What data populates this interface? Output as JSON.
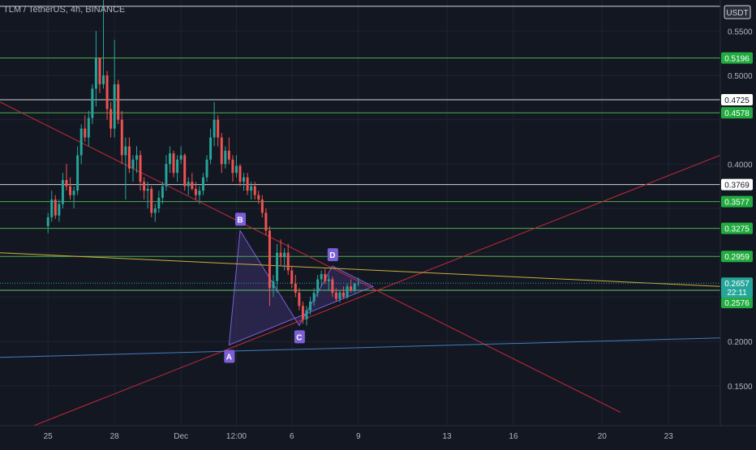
{
  "symbol_title": "TLM / TetherUS, 4h, BINANCE",
  "currency": "USDT",
  "colors": {
    "background": "#131722",
    "grid": "#1f2430",
    "up": "#26a69a",
    "down": "#ef5350",
    "green_level": "#4caf50",
    "white_level": "#d1d4dc",
    "trend_red": "#c62a3a",
    "trend_yellow": "#c9b037",
    "trend_blue": "#3f7fbf",
    "pattern_fill": "#3a2f6b",
    "pattern_stroke": "#7b5fd6",
    "label_green": "#22ab3f",
    "label_current": "#26a69a"
  },
  "chart_data": {
    "type": "candlestick",
    "title": "TLM / TetherUS, 4h, BINANCE",
    "y_axis": {
      "unit": "USDT",
      "range": [
        0.105,
        0.585
      ],
      "ticks": [
        0.15,
        0.2,
        0.25,
        0.3,
        0.35,
        0.4,
        0.45,
        0.5,
        0.55
      ],
      "tick_labels": [
        "0.1500",
        "0.2000",
        "",
        "",
        "",
        "0.4000",
        "",
        "0.5000",
        "0.5500"
      ],
      "grid": true
    },
    "x_axis": {
      "ticks": [
        {
          "label": "25",
          "pos": 0
        },
        {
          "label": "28",
          "pos": 18
        },
        {
          "label": "Dec",
          "pos": 36
        },
        {
          "label": "12:00",
          "pos": 51
        },
        {
          "label": "6",
          "pos": 66
        },
        {
          "label": "9",
          "pos": 84
        },
        {
          "label": "13",
          "pos": 108
        },
        {
          "label": "16",
          "pos": 126
        },
        {
          "label": "20",
          "pos": 150
        },
        {
          "label": "23",
          "pos": 168
        }
      ],
      "range": [
        -13,
        182
      ],
      "grid": true
    },
    "candles_ohlc": [
      [
        0.33,
        0.345,
        0.322,
        0.34
      ],
      [
        0.34,
        0.37,
        0.335,
        0.36
      ],
      [
        0.36,
        0.365,
        0.338,
        0.342
      ],
      [
        0.342,
        0.36,
        0.335,
        0.355
      ],
      [
        0.355,
        0.39,
        0.35,
        0.382
      ],
      [
        0.382,
        0.4,
        0.37,
        0.375
      ],
      [
        0.375,
        0.385,
        0.36,
        0.365
      ],
      [
        0.365,
        0.375,
        0.35,
        0.37
      ],
      [
        0.37,
        0.42,
        0.365,
        0.41
      ],
      [
        0.41,
        0.445,
        0.4,
        0.44
      ],
      [
        0.44,
        0.455,
        0.425,
        0.43
      ],
      [
        0.43,
        0.46,
        0.42,
        0.452
      ],
      [
        0.452,
        0.49,
        0.445,
        0.485
      ],
      [
        0.485,
        0.55,
        0.465,
        0.52
      ],
      [
        0.52,
        0.52,
        0.48,
        0.49
      ],
      [
        0.49,
        0.585,
        0.485,
        0.5
      ],
      [
        0.5,
        0.505,
        0.45,
        0.462
      ],
      [
        0.462,
        0.47,
        0.43,
        0.44
      ],
      [
        0.44,
        0.54,
        0.43,
        0.49
      ],
      [
        0.49,
        0.495,
        0.445,
        0.45
      ],
      [
        0.45,
        0.46,
        0.4,
        0.41
      ],
      [
        0.41,
        0.43,
        0.36,
        0.42
      ],
      [
        0.42,
        0.43,
        0.39,
        0.395
      ],
      [
        0.395,
        0.41,
        0.38,
        0.405
      ],
      [
        0.405,
        0.42,
        0.39,
        0.41
      ],
      [
        0.41,
        0.415,
        0.37,
        0.38
      ],
      [
        0.38,
        0.385,
        0.36,
        0.37
      ],
      [
        0.37,
        0.38,
        0.35,
        0.372
      ],
      [
        0.372,
        0.375,
        0.34,
        0.345
      ],
      [
        0.345,
        0.355,
        0.335,
        0.35
      ],
      [
        0.35,
        0.37,
        0.345,
        0.362
      ],
      [
        0.362,
        0.38,
        0.355,
        0.375
      ],
      [
        0.375,
        0.41,
        0.37,
        0.4
      ],
      [
        0.4,
        0.42,
        0.39,
        0.412
      ],
      [
        0.412,
        0.415,
        0.385,
        0.39
      ],
      [
        0.39,
        0.41,
        0.38,
        0.405
      ],
      [
        0.405,
        0.42,
        0.4,
        0.41
      ],
      [
        0.41,
        0.412,
        0.37,
        0.375
      ],
      [
        0.375,
        0.385,
        0.365,
        0.38
      ],
      [
        0.38,
        0.39,
        0.37,
        0.372
      ],
      [
        0.372,
        0.38,
        0.36,
        0.365
      ],
      [
        0.365,
        0.375,
        0.355,
        0.37
      ],
      [
        0.37,
        0.39,
        0.365,
        0.385
      ],
      [
        0.385,
        0.41,
        0.38,
        0.405
      ],
      [
        0.405,
        0.44,
        0.4,
        0.43
      ],
      [
        0.43,
        0.47,
        0.42,
        0.45
      ],
      [
        0.45,
        0.455,
        0.42,
        0.43
      ],
      [
        0.43,
        0.435,
        0.39,
        0.4
      ],
      [
        0.4,
        0.42,
        0.395,
        0.415
      ],
      [
        0.415,
        0.43,
        0.4,
        0.405
      ],
      [
        0.405,
        0.41,
        0.38,
        0.39
      ],
      [
        0.39,
        0.41,
        0.385,
        0.398
      ],
      [
        0.398,
        0.4,
        0.375,
        0.38
      ],
      [
        0.38,
        0.39,
        0.37,
        0.385
      ],
      [
        0.385,
        0.39,
        0.365,
        0.37
      ],
      [
        0.37,
        0.38,
        0.36,
        0.375
      ],
      [
        0.375,
        0.38,
        0.36,
        0.365
      ],
      [
        0.365,
        0.37,
        0.355,
        0.36
      ],
      [
        0.36,
        0.365,
        0.34,
        0.345
      ],
      [
        0.345,
        0.35,
        0.32,
        0.325
      ],
      [
        0.325,
        0.33,
        0.24,
        0.26
      ],
      [
        0.26,
        0.275,
        0.25,
        0.268
      ],
      [
        0.268,
        0.31,
        0.255,
        0.3
      ],
      [
        0.3,
        0.315,
        0.285,
        0.295
      ],
      [
        0.295,
        0.305,
        0.28,
        0.3
      ],
      [
        0.3,
        0.31,
        0.275,
        0.28
      ],
      [
        0.28,
        0.285,
        0.26,
        0.265
      ],
      [
        0.265,
        0.275,
        0.25,
        0.255
      ],
      [
        0.255,
        0.26,
        0.235,
        0.24
      ],
      [
        0.24,
        0.245,
        0.22,
        0.225
      ],
      [
        0.225,
        0.24,
        0.218,
        0.235
      ],
      [
        0.235,
        0.25,
        0.23,
        0.245
      ],
      [
        0.245,
        0.26,
        0.24,
        0.255
      ],
      [
        0.255,
        0.275,
        0.25,
        0.27
      ],
      [
        0.27,
        0.28,
        0.262,
        0.276
      ],
      [
        0.276,
        0.282,
        0.265,
        0.268
      ],
      [
        0.268,
        0.275,
        0.258,
        0.27
      ],
      [
        0.27,
        0.273,
        0.25,
        0.255
      ],
      [
        0.255,
        0.26,
        0.245,
        0.248
      ],
      [
        0.248,
        0.258,
        0.244,
        0.255
      ],
      [
        0.255,
        0.262,
        0.248,
        0.25
      ],
      [
        0.25,
        0.265,
        0.248,
        0.262
      ],
      [
        0.262,
        0.27,
        0.255,
        0.258
      ],
      [
        0.258,
        0.266,
        0.255,
        0.265
      ],
      [
        0.265,
        0.272,
        0.262,
        0.2657
      ]
    ],
    "horizontal_levels": [
      {
        "value": 0.5779,
        "color": "white"
      },
      {
        "value": 0.5196,
        "color": "green",
        "label": "0.5196"
      },
      {
        "value": 0.4725,
        "color": "white",
        "label": "0.4725"
      },
      {
        "value": 0.4578,
        "color": "green",
        "label": "0.4578"
      },
      {
        "value": 0.3769,
        "color": "white",
        "label": "0.3769"
      },
      {
        "value": 0.3577,
        "color": "green",
        "label": "0.3577"
      },
      {
        "value": 0.3275,
        "color": "green",
        "label": "0.3275"
      },
      {
        "value": 0.2959,
        "color": "green",
        "label": "0.2959"
      },
      {
        "value": 0.2577,
        "color": "white",
        "label": "0.2577"
      },
      {
        "value": 0.2576,
        "color": "green",
        "label": "0.2576"
      }
    ],
    "current_price": {
      "value": 0.2657,
      "label": "0.2657",
      "countdown": "22:11"
    },
    "trendlines": [
      {
        "color": "red",
        "from": [
          -13,
          0.47
        ],
        "to": [
          155,
          0.12
        ]
      },
      {
        "color": "red",
        "from": [
          -13,
          0.09
        ],
        "to": [
          182,
          0.41
        ]
      },
      {
        "color": "yellow",
        "from": [
          -13,
          0.3
        ],
        "to": [
          182,
          0.262
        ]
      },
      {
        "color": "blue",
        "from": [
          -13,
          0.182
        ],
        "to": [
          182,
          0.204
        ]
      }
    ],
    "pattern_points": [
      {
        "label": "A",
        "x": 49,
        "y": 0.196
      },
      {
        "label": "B",
        "x": 52,
        "y": 0.325
      },
      {
        "label": "C",
        "x": 68,
        "y": 0.218
      },
      {
        "label": "D",
        "x": 77,
        "y": 0.285
      },
      {
        "label": "",
        "x": 88,
        "y": 0.262
      }
    ]
  }
}
